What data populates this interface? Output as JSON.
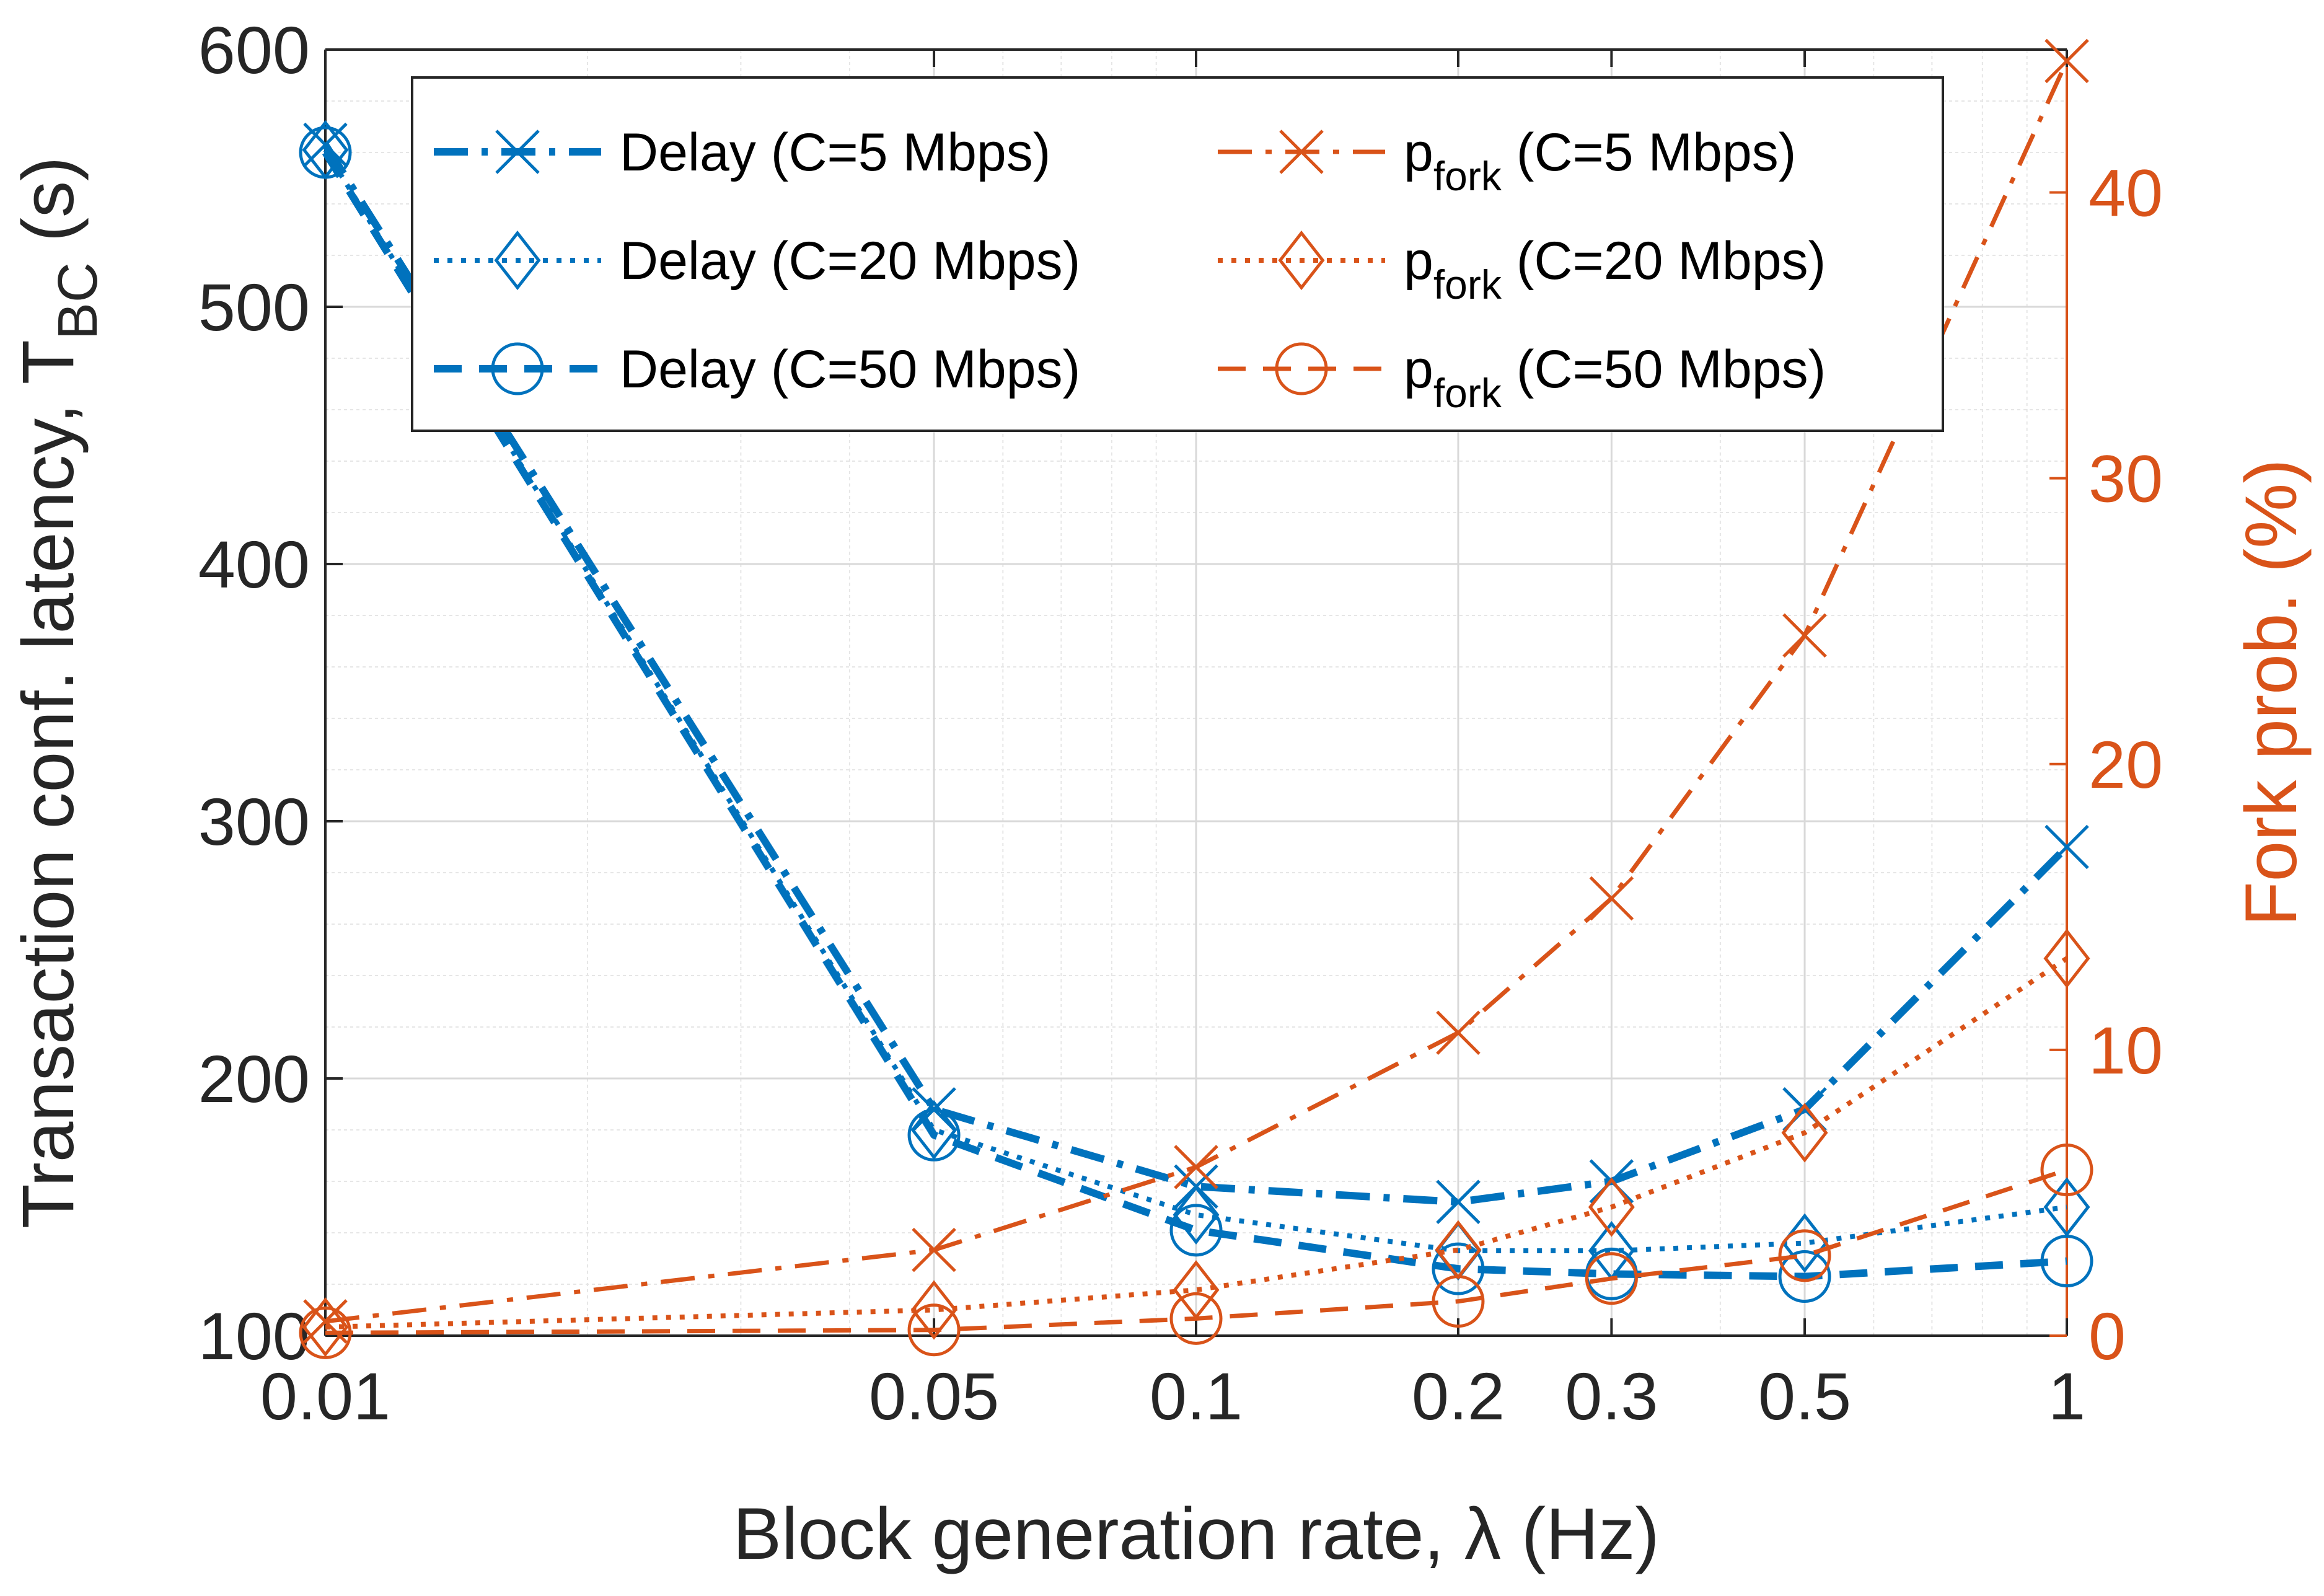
{
  "chart_data": {
    "type": "line",
    "title": "",
    "xlabel": "Block generation rate, λ (Hz)",
    "ylabel_left": {
      "main": "Transaction conf. latency, T",
      "sub": "BC",
      "suffix": " (s)"
    },
    "ylabel_right": "Fork prob. (%)",
    "x_categories": [
      "0.01",
      "0.05",
      "0.1",
      "0.2",
      "0.3",
      "0.5",
      "1"
    ],
    "ylim_left": [
      100,
      600
    ],
    "yticks_left": [
      100,
      200,
      300,
      400,
      500,
      600
    ],
    "ylim_right": [
      0,
      45
    ],
    "yticks_right": [
      0,
      10,
      20,
      30,
      40
    ],
    "grid": true,
    "legend_position": "top",
    "colors": {
      "delay": "#0072BD",
      "fork": "#D95319",
      "axis": "#262626",
      "grid": "#d9d9d9"
    },
    "series": [
      {
        "name": "Delay (C=5 Mbps)",
        "legend_main": "Delay (C=5 Mbps)",
        "axis": "left",
        "marker": "x",
        "style": "dashdot",
        "color": "#0072BD",
        "values": [
          563,
          188,
          158,
          152,
          160,
          188,
          290
        ]
      },
      {
        "name": "Delay (C=20 Mbps)",
        "legend_main": "Delay (C=20 Mbps)",
        "axis": "left",
        "marker": "diamond",
        "style": "dotted",
        "color": "#0072BD",
        "values": [
          561,
          180,
          147,
          133,
          133,
          136,
          150
        ]
      },
      {
        "name": "Delay (C=50 Mbps)",
        "legend_main": "Delay (C=50 Mbps)",
        "axis": "left",
        "marker": "circle",
        "style": "dashed",
        "color": "#0072BD",
        "values": [
          560,
          178,
          141,
          126,
          124,
          123,
          129
        ]
      },
      {
        "name": "pfork (C=5 Mbps)",
        "legend_main": "p",
        "legend_sub": "fork",
        "legend_suffix": " (C=5 Mbps)",
        "axis": "right",
        "marker": "x",
        "style": "dashdot",
        "color": "#D95319",
        "values": [
          0.5,
          3.0,
          5.9,
          10.6,
          15.3,
          24.5,
          44.6
        ]
      },
      {
        "name": "pfork (C=20 Mbps)",
        "legend_main": "p",
        "legend_sub": "fork",
        "legend_suffix": " (C=20 Mbps)",
        "axis": "right",
        "marker": "diamond",
        "style": "dotted",
        "color": "#D95319",
        "values": [
          0.3,
          0.9,
          1.6,
          3.0,
          4.5,
          7.1,
          13.2
        ]
      },
      {
        "name": "pfork (C=50 Mbps)",
        "legend_main": "p",
        "legend_sub": "fork",
        "legend_suffix": " (C=50 Mbps)",
        "axis": "right",
        "marker": "circle",
        "style": "dashed",
        "color": "#D95319",
        "values": [
          0.1,
          0.2,
          0.6,
          1.2,
          2.0,
          2.8,
          5.8
        ]
      }
    ]
  }
}
